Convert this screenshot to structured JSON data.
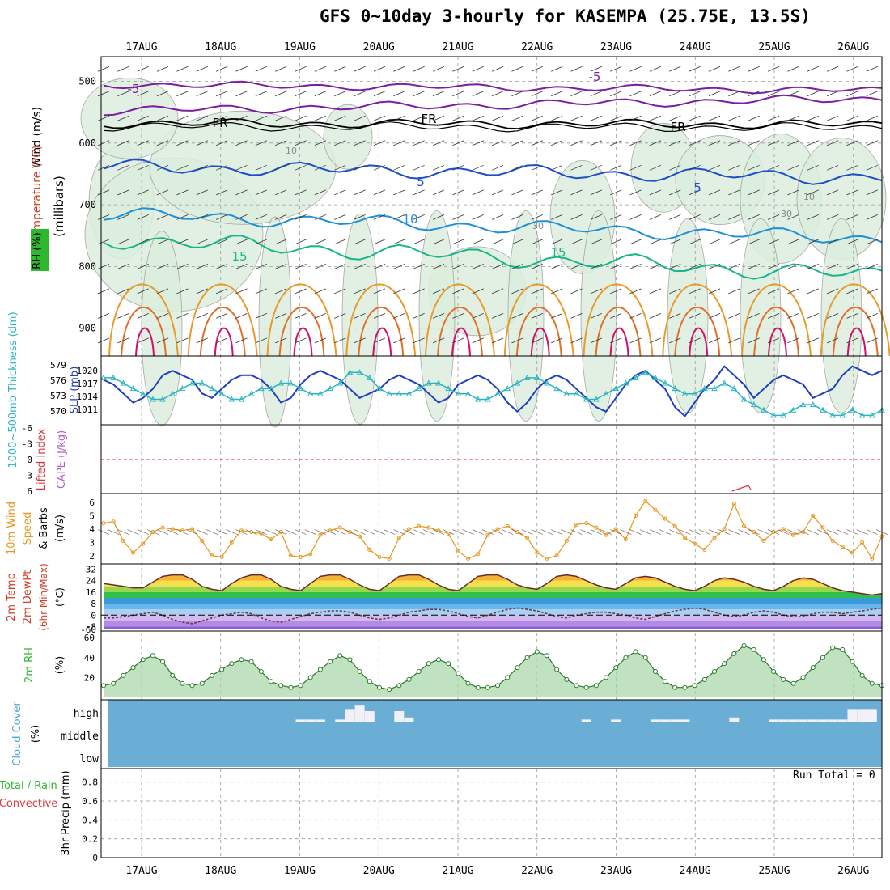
{
  "title": "GFS 0~10day 3-hourly for KASEMPA (25.75E, 13.5S)",
  "dates": [
    "17AUG",
    "18AUG",
    "19AUG",
    "20AUG",
    "21AUG",
    "22AUG",
    "23AUG",
    "24AUG",
    "25AUG",
    "26AUG"
  ],
  "run_total": "Run Total = 0",
  "colors": {
    "temp_contour": "#7b1fa2",
    "freezing_level": "#000000",
    "isotherm_5": "#1e4fc8",
    "isotherm_10": "#1e90d8",
    "isotherm_15": "#17b58a",
    "isotherm_warm": "#e89b2c",
    "isotherm_hot": "#d0106a",
    "rh_fill": "#dceedd",
    "slp_line": "#1e3fbf",
    "thickness_line": "#2bb5c0",
    "lifted_zero": "#d83a3a",
    "wind_speed": "#e8961f",
    "rh2m_fill": "#4da84d",
    "cloud_bg": "#6aaed6",
    "cloud_bar": "#f4f0f8"
  },
  "panels": {
    "upper_air": {
      "ylabel": "(millibars)",
      "legend": [
        "Wind (m/s)",
        "Temperature (°C)",
        "RH (%)"
      ],
      "yticks": [
        "500",
        "600",
        "700",
        "800",
        "900"
      ],
      "contour_labels": [
        "-5",
        "-5",
        "FR",
        "FR",
        "FR",
        "5",
        "5",
        "10",
        "15",
        "15",
        "10",
        "30",
        "30",
        "10"
      ]
    },
    "pressure": {
      "ylabel_left": "1000~500mb Thickness (dm)",
      "ylabel_right": "SLP (mb)",
      "left_ticks": [
        "579",
        "576",
        "573",
        "570"
      ],
      "right_ticks": [
        "1020",
        "1017",
        "1014",
        "1011"
      ]
    },
    "stability": {
      "ylabel_left": "Lifted Index",
      "ylabel_right": "CAPE (J/kg)",
      "yticks": [
        "-6",
        "-3",
        "0",
        "3",
        "6"
      ]
    },
    "wind10m": {
      "ylabel": [
        "10m Wind",
        "Speed",
        "& Barbs",
        "(m/s)"
      ],
      "yticks": [
        "6",
        "5",
        "4",
        "3",
        "2"
      ]
    },
    "temp2m": {
      "ylabel": [
        "2m Temp",
        "2m DewPt",
        "(6hr Min/Max)",
        "(°C)"
      ],
      "yticks": [
        "32",
        "24",
        "16",
        "8",
        "0",
        "-8",
        "-60"
      ]
    },
    "rh2m": {
      "ylabel": [
        "2m RH",
        "(%)"
      ],
      "yticks": [
        "60",
        "40",
        "20"
      ]
    },
    "cloud": {
      "ylabel": [
        "Cloud Cover",
        "(%)"
      ],
      "levels": [
        "high",
        "middle",
        "low"
      ]
    },
    "precip": {
      "ylabel": [
        "Total / Rain",
        "Convective",
        "3hr Precip (mm)"
      ],
      "yticks": [
        "0.8",
        "0.6",
        "0.4",
        "0.2",
        "0"
      ]
    }
  },
  "chart_data": [
    {
      "type": "line",
      "name": "SLP",
      "unit": "mb",
      "ylim": [
        1009,
        1022
      ],
      "x_steps": 80,
      "values": [
        1018,
        1017,
        1015,
        1013,
        1014,
        1016,
        1019,
        1020,
        1019,
        1018,
        1015,
        1014,
        1016,
        1018,
        1019,
        1019,
        1018,
        1016,
        1013,
        1014,
        1017,
        1019,
        1020,
        1019,
        1018,
        1016,
        1014,
        1015,
        1016,
        1018,
        1019,
        1018,
        1017,
        1015,
        1013,
        1014,
        1017,
        1018,
        1019,
        1018,
        1016,
        1013,
        1011,
        1013,
        1016,
        1018,
        1019,
        1018,
        1016,
        1014,
        1012,
        1011,
        1014,
        1017,
        1019,
        1020,
        1018,
        1016,
        1012,
        1010,
        1013,
        1016,
        1018,
        1021,
        1019,
        1017,
        1014,
        1016,
        1018,
        1019,
        1018,
        1017,
        1014,
        1015,
        1016,
        1019,
        1021,
        1020,
        1019,
        1020
      ]
    },
    {
      "type": "line",
      "name": "1000-500mb Thickness",
      "unit": "dm",
      "ylim": [
        569,
        580
      ],
      "x_steps": 80,
      "values": [
        577,
        577,
        576,
        575,
        574,
        573,
        573,
        574,
        575,
        576,
        576,
        575,
        574,
        573,
        573,
        574,
        575,
        575,
        576,
        576,
        575,
        574,
        574,
        575,
        576,
        578,
        578,
        577,
        575,
        574,
        574,
        574,
        575,
        576,
        576,
        575,
        574,
        574,
        573,
        573,
        574,
        575,
        576,
        577,
        577,
        576,
        575,
        574,
        574,
        573,
        573,
        574,
        575,
        576,
        577,
        578,
        577,
        576,
        575,
        574,
        574,
        575,
        575,
        576,
        575,
        573,
        572,
        571,
        570,
        570,
        571,
        572,
        572,
        571,
        570,
        570,
        571,
        570,
        570,
        571
      ]
    },
    {
      "type": "line",
      "name": "10m Wind Speed",
      "unit": "m/s",
      "ylim": [
        2,
        6.5
      ],
      "x_steps": 80,
      "values": [
        4.6,
        4.7,
        3.4,
        2.6,
        3.2,
        4.0,
        4.3,
        4.2,
        4.1,
        4.2,
        3.4,
        2.4,
        2.3,
        3.3,
        4.1,
        4.0,
        3.9,
        3.5,
        4.0,
        2.4,
        2.3,
        2.5,
        3.8,
        4.1,
        4.3,
        4.0,
        3.7,
        2.8,
        2.3,
        2.2,
        3.6,
        4.2,
        4.4,
        4.3,
        4.1,
        3.9,
        2.7,
        2.2,
        2.5,
        3.8,
        4.2,
        4.4,
        4.0,
        3.6,
        2.6,
        2.2,
        2.4,
        3.4,
        4.5,
        4.6,
        4.3,
        3.8,
        4.2,
        3.5,
        5.1,
        6.1,
        5.5,
        4.9,
        4.4,
        3.6,
        3.2,
        2.8,
        3.6,
        4.2,
        5.9,
        4.4,
        4.0,
        3.4,
        4.0,
        4.2,
        3.8,
        4.0,
        5.1,
        4.3,
        3.4,
        3.0,
        2.6,
        3.3,
        2.2,
        3.7
      ]
    },
    {
      "type": "area",
      "name": "2m RH",
      "unit": "%",
      "ylim": [
        0,
        65
      ],
      "x_steps": 80,
      "values": [
        12,
        14,
        22,
        30,
        38,
        42,
        36,
        22,
        14,
        12,
        14,
        22,
        28,
        34,
        38,
        36,
        26,
        16,
        12,
        10,
        12,
        20,
        28,
        36,
        42,
        38,
        26,
        16,
        10,
        8,
        12,
        18,
        26,
        34,
        38,
        34,
        24,
        14,
        10,
        10,
        12,
        20,
        30,
        40,
        46,
        42,
        28,
        18,
        12,
        10,
        12,
        20,
        30,
        40,
        46,
        40,
        26,
        16,
        10,
        10,
        12,
        18,
        26,
        34,
        44,
        52,
        48,
        38,
        26,
        18,
        14,
        20,
        30,
        40,
        50,
        48,
        36,
        22,
        14,
        12
      ]
    },
    {
      "type": "line",
      "name": "2m Temp",
      "unit": "°C",
      "ylim": [
        -10,
        34
      ],
      "x_steps": 80,
      "values": [
        22,
        21,
        20,
        19,
        19,
        23,
        27,
        28,
        28,
        25,
        20,
        18,
        17,
        22,
        26,
        28,
        28,
        25,
        20,
        18,
        17,
        22,
        27,
        28,
        28,
        25,
        21,
        18,
        17,
        22,
        27,
        28,
        28,
        25,
        21,
        18,
        17,
        22,
        27,
        28,
        28,
        25,
        21,
        19,
        18,
        22,
        27,
        28,
        27,
        24,
        21,
        19,
        18,
        22,
        26,
        27,
        26,
        23,
        20,
        18,
        17,
        20,
        24,
        26,
        25,
        23,
        20,
        18,
        17,
        20,
        24,
        26,
        25,
        22,
        19,
        17,
        16,
        15,
        14,
        15
      ]
    },
    {
      "type": "line",
      "name": "2m DewPt",
      "unit": "°C",
      "ylim": [
        -10,
        34
      ],
      "x_steps": 80,
      "values": [
        -2,
        -2,
        -1,
        0,
        1,
        2,
        0,
        -3,
        -5,
        -6,
        -4,
        -2,
        0,
        1,
        2,
        1,
        -2,
        -4,
        -5,
        -3,
        -1,
        1,
        2,
        3,
        3,
        2,
        0,
        -2,
        -3,
        -2,
        0,
        2,
        3,
        4,
        4,
        3,
        1,
        -1,
        -2,
        0,
        2,
        4,
        5,
        4,
        3,
        1,
        -1,
        -2,
        0,
        1,
        2,
        2,
        1,
        0,
        -2,
        -3,
        -1,
        1,
        3,
        4,
        5,
        4,
        2,
        0,
        -1,
        0,
        2,
        3,
        2,
        0,
        -1,
        -1,
        1,
        2,
        2,
        1,
        2,
        3,
        4,
        5
      ]
    },
    {
      "type": "bar",
      "name": "High cloud cover",
      "unit": "%",
      "ylim": [
        0,
        100
      ],
      "x_steps": 80,
      "values": [
        0,
        0,
        0,
        0,
        0,
        0,
        0,
        0,
        0,
        0,
        0,
        0,
        0,
        0,
        0,
        0,
        0,
        0,
        0,
        0,
        10,
        10,
        10,
        0,
        10,
        60,
        80,
        50,
        0,
        0,
        50,
        20,
        0,
        0,
        0,
        0,
        0,
        0,
        0,
        0,
        0,
        0,
        0,
        0,
        0,
        0,
        0,
        0,
        0,
        10,
        0,
        0,
        10,
        0,
        0,
        0,
        10,
        10,
        10,
        10,
        0,
        0,
        0,
        0,
        20,
        0,
        0,
        0,
        10,
        10,
        10,
        10,
        10,
        10,
        10,
        10,
        60,
        60,
        60,
        0
      ]
    },
    {
      "type": "bar",
      "name": "3hr Precip",
      "unit": "mm",
      "ylim": [
        0,
        0.9
      ],
      "x_steps": 80,
      "values": [
        0,
        0,
        0,
        0,
        0,
        0,
        0,
        0,
        0,
        0,
        0,
        0,
        0,
        0,
        0,
        0,
        0,
        0,
        0,
        0,
        0,
        0,
        0,
        0,
        0,
        0,
        0,
        0,
        0,
        0,
        0,
        0,
        0,
        0,
        0,
        0,
        0,
        0,
        0,
        0,
        0,
        0,
        0,
        0,
        0,
        0,
        0,
        0,
        0,
        0,
        0,
        0,
        0,
        0,
        0,
        0,
        0,
        0,
        0,
        0,
        0,
        0,
        0,
        0,
        0,
        0,
        0,
        0,
        0,
        0,
        0,
        0,
        0,
        0,
        0,
        0,
        0,
        0,
        0,
        0
      ]
    }
  ]
}
